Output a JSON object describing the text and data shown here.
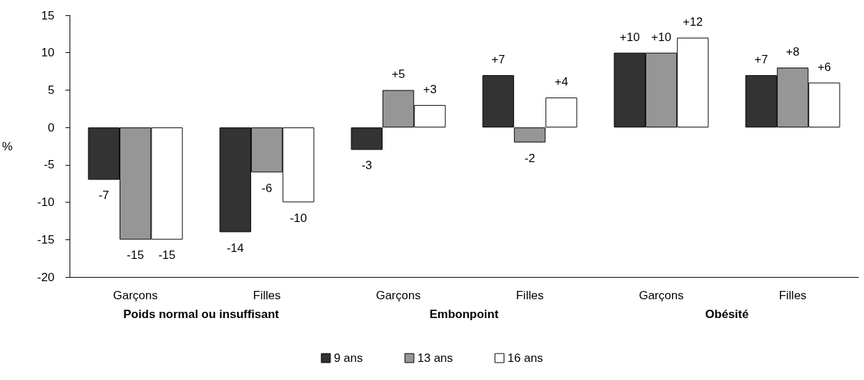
{
  "chart_data": {
    "type": "bar",
    "ylabel": "%",
    "categories": [
      "Garçons",
      "Filles",
      "Garçons",
      "Filles",
      "Garçons",
      "Filles"
    ],
    "annotations": [
      "Poids normal ou insuffisant",
      "Embonpoint",
      "Obésité"
    ],
    "series": [
      {
        "name": "9 ans",
        "color": "#333333",
        "values": [
          -7,
          -14,
          -3,
          7,
          10,
          7
        ],
        "value_labels": [
          "-7",
          "-14",
          "-3",
          "+7",
          "+10",
          "+7"
        ]
      },
      {
        "name": "13 ans",
        "color": "#969696",
        "values": [
          -15,
          -6,
          5,
          -2,
          10,
          8
        ],
        "value_labels": [
          "-15",
          "-6",
          "+5",
          "-2",
          "+10",
          "+8"
        ]
      },
      {
        "name": "16 ans",
        "color": "#ffffff",
        "values": [
          -15,
          -10,
          3,
          4,
          12,
          6
        ],
        "value_labels": [
          "-15",
          "-10",
          "+3",
          "+4",
          "+12",
          "+6"
        ]
      }
    ],
    "ylim": [
      -20,
      15
    ],
    "yticks": [
      -20,
      -15,
      -10,
      -5,
      0,
      5,
      10,
      15
    ],
    "grid": false,
    "legend": "bottom"
  }
}
